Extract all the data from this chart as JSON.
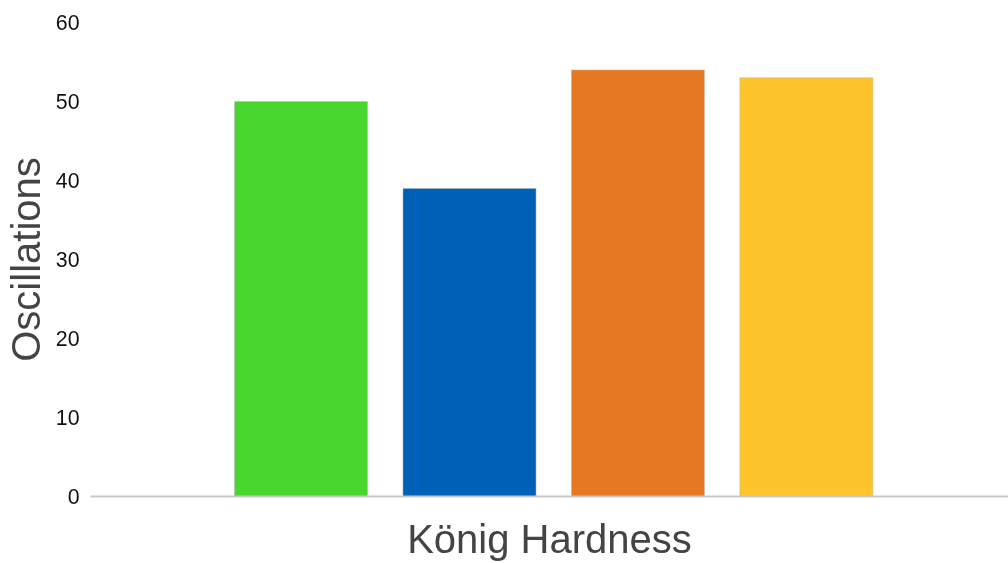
{
  "chart_data": {
    "type": "bar",
    "xlabel": "König Hardness",
    "ylabel": "Oscillations",
    "categories": [
      null,
      null,
      null,
      null
    ],
    "values": [
      50,
      39,
      54,
      53
    ],
    "colors": [
      "#48d62f",
      "#0060b8",
      "#e67822",
      "#fdc42c"
    ],
    "ylim": [
      0,
      60
    ],
    "yticks": [
      0,
      10,
      20,
      30,
      40,
      50,
      60
    ],
    "grid": false
  }
}
